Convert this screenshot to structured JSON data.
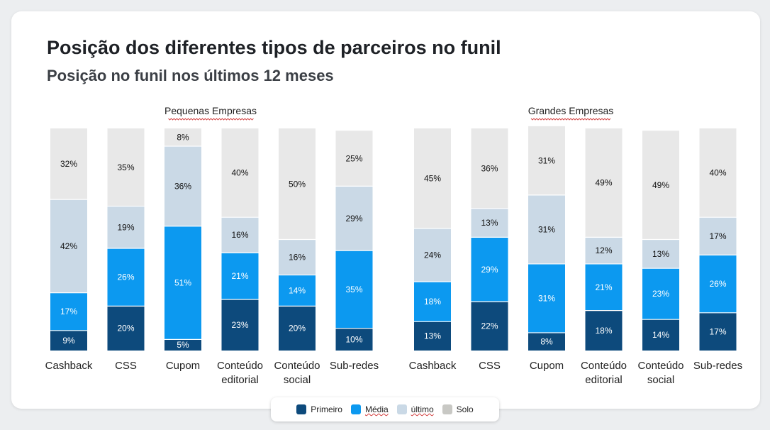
{
  "title": "Posição dos diferentes tipos de parceiros no funil",
  "subtitle": "Posição no funil nos últimos 12 meses",
  "colors": {
    "primeiro": "#0d4a7c",
    "media": "#0c99f0",
    "ultimo": "#cad9e6",
    "solo": "#e8e8e8"
  },
  "legend": [
    {
      "name": "Primeiro",
      "color": "#0d4a7c"
    },
    {
      "name": "Média",
      "color": "#0c99f0"
    },
    {
      "name": "último",
      "color": "#cad9e6"
    },
    {
      "name": "Solo",
      "color": "#c8c8c4"
    }
  ],
  "chart_data": [
    {
      "type": "bar",
      "stacked": true,
      "title": "Pequenas Empresas",
      "categories": [
        "Cashback",
        "CSS",
        "Cupom",
        "Conteúdo editorial",
        "Conteúdo social",
        "Sub-redes"
      ],
      "series": [
        {
          "name": "Primeiro",
          "values": [
            9,
            20,
            5,
            23,
            20,
            10
          ]
        },
        {
          "name": "Média",
          "values": [
            17,
            26,
            51,
            21,
            14,
            35
          ]
        },
        {
          "name": "último",
          "values": [
            42,
            19,
            36,
            16,
            16,
            29
          ]
        },
        {
          "name": "Solo",
          "values": [
            32,
            35,
            8,
            40,
            50,
            25
          ]
        }
      ],
      "ylim": [
        0,
        100
      ]
    },
    {
      "type": "bar",
      "stacked": true,
      "title": "Grandes Empresas",
      "categories": [
        "Cashback",
        "CSS",
        "Cupom",
        "Conteúdo editorial",
        "Conteúdo social",
        "Sub-redes"
      ],
      "series": [
        {
          "name": "Primeiro",
          "values": [
            13,
            22,
            8,
            18,
            14,
            17
          ]
        },
        {
          "name": "Média",
          "values": [
            18,
            29,
            31,
            21,
            23,
            26
          ]
        },
        {
          "name": "último",
          "values": [
            24,
            13,
            31,
            12,
            13,
            17
          ]
        },
        {
          "name": "Solo",
          "values": [
            45,
            36,
            31,
            49,
            49,
            40
          ]
        }
      ],
      "ylim": [
        0,
        100
      ]
    }
  ]
}
